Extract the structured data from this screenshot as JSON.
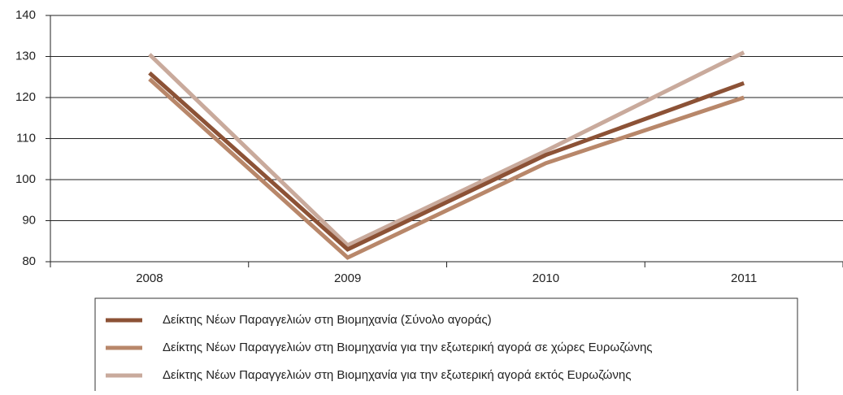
{
  "chart_data": {
    "type": "line",
    "categories": [
      "2008",
      "2009",
      "2010",
      "2011"
    ],
    "series": [
      {
        "name": "Δείκτης Νέων Παραγγελιών στη Βιομηχανία (Σύνολο αγοράς)",
        "color": "#8c5236",
        "values": [
          126,
          83,
          106,
          123.5
        ]
      },
      {
        "name": "Δείκτης Νέων Παραγγελιών στη Βιομηχανία για την εξωτερική αγορά σε χώρες Ευρωζώνης",
        "color": "#b8876a",
        "values": [
          124.5,
          81,
          104,
          120
        ]
      },
      {
        "name": "Δείκτης Νέων Παραγγελιών στη Βιομηχανία για την εξωτερική αγορά εκτός Ευρωζώνης",
        "color": "#c9aa9c",
        "values": [
          130.5,
          84,
          107,
          131
        ]
      }
    ],
    "ylim": [
      80,
      140
    ],
    "yticks": [
      80,
      90,
      100,
      110,
      120,
      130,
      140
    ],
    "grid": true
  }
}
